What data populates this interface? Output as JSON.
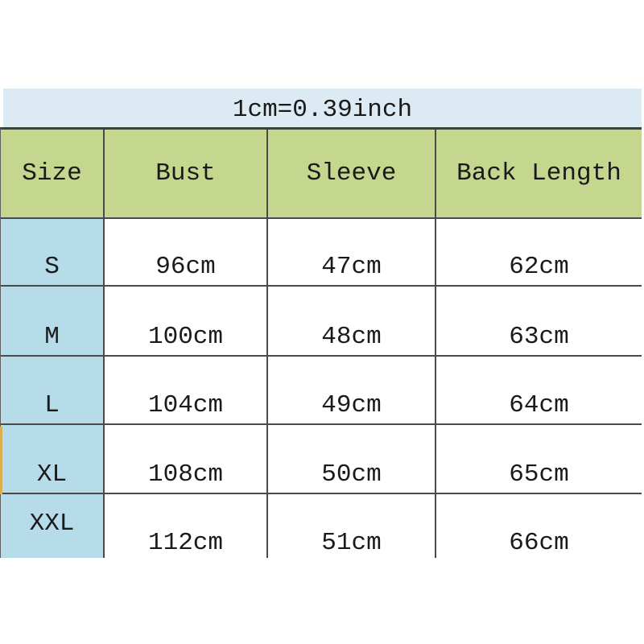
{
  "banner": {
    "text": "1cm=0.39inch"
  },
  "chart_data": {
    "type": "table",
    "title": "1cm=0.39inch",
    "columns": [
      "Size",
      "Bust",
      "Sleeve",
      "Back Length"
    ],
    "rows": [
      [
        "S",
        "96cm",
        "47cm",
        "62cm"
      ],
      [
        "M",
        "100cm",
        "48cm",
        "63cm"
      ],
      [
        "L",
        "104cm",
        "49cm",
        "64cm"
      ],
      [
        "XL",
        "108cm",
        "50cm",
        "65cm"
      ],
      [
        "XXL",
        "112cm",
        "51cm",
        "66cm"
      ]
    ]
  },
  "colors": {
    "banner_bg": "#dcebf3",
    "header_bg": "#c5d78e",
    "size_column_bg": "#b6dbe9",
    "highlight_strip": "#d9b04c",
    "grid_border": "#4a4a4a",
    "top_border": "#3a423c",
    "text": "#1a1a1a"
  }
}
